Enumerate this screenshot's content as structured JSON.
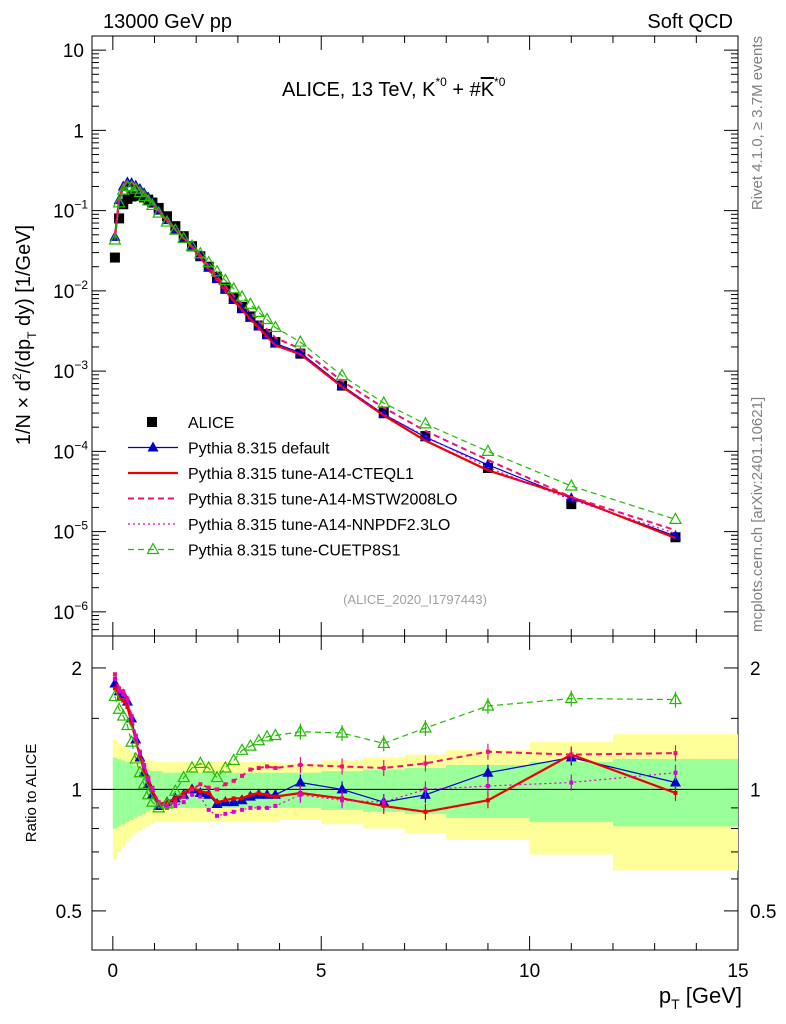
{
  "header": {
    "left": "13000 GeV pp",
    "right": "Soft QCD"
  },
  "side_labels": {
    "rivet": "Rivet 4.1.0, ≥ 3.7M events",
    "mcplots": "mcplots.cern.ch [arXiv:2401.10621]"
  },
  "watermark": "(ALICE_2020_I1797443)",
  "chart_data": [
    {
      "type": "line",
      "panel": "main",
      "title_parts": [
        "ALICE, 13 TeV, K",
        "*0",
        " + #",
        "K",
        "*0"
      ],
      "ylabel_parts": [
        "1/N × d",
        "2",
        "/(dp",
        "T",
        " dy) [1/GeV]"
      ],
      "xlim": [
        -0.5,
        15.0
      ],
      "ylim": [
        5e-07,
        15
      ],
      "yscale": "log",
      "yticks": [
        {
          "v": 1e-06,
          "b": "10",
          "e": "−6"
        },
        {
          "v": 1e-05,
          "b": "10",
          "e": "−5"
        },
        {
          "v": 0.0001,
          "b": "10",
          "e": "−4"
        },
        {
          "v": 0.001,
          "b": "10",
          "e": "−3"
        },
        {
          "v": 0.01,
          "b": "10",
          "e": "−2"
        },
        {
          "v": 0.1,
          "b": "10",
          "e": "−1"
        },
        {
          "v": 1,
          "b": "1",
          "e": ""
        },
        {
          "v": 10,
          "b": "10",
          "e": ""
        }
      ],
      "legend_position": "lower-left",
      "series": [
        {
          "name": "ALICE",
          "style": "data",
          "color": "#000000",
          "x": [
            0.05,
            0.15,
            0.25,
            0.35,
            0.45,
            0.55,
            0.65,
            0.75,
            0.85,
            0.95,
            1.1,
            1.3,
            1.5,
            1.7,
            1.9,
            2.1,
            2.3,
            2.5,
            2.7,
            2.9,
            3.1,
            3.3,
            3.5,
            3.7,
            3.9,
            4.5,
            5.5,
            6.5,
            7.5,
            9.0,
            11.0,
            13.5
          ],
          "values": [
            0.026,
            0.08,
            0.12,
            0.14,
            0.15,
            0.155,
            0.153,
            0.146,
            0.137,
            0.126,
            0.108,
            0.085,
            0.064,
            0.048,
            0.036,
            0.027,
            0.02,
            0.015,
            0.011,
            0.0083,
            0.0063,
            0.0048,
            0.0037,
            0.0029,
            0.0023,
            0.00165,
            0.00066,
            0.00031,
            0.000155,
            6.2e-05,
            2.2e-05,
            8.5e-06
          ]
        },
        {
          "name": "Pythia 8.315 default",
          "style": "solid-triangle",
          "color": "#0000cc",
          "x": [
            0.05,
            0.15,
            0.25,
            0.35,
            0.45,
            0.55,
            0.65,
            0.75,
            0.85,
            0.95,
            1.1,
            1.3,
            1.5,
            1.7,
            1.9,
            2.1,
            2.3,
            2.5,
            2.7,
            2.9,
            3.1,
            3.3,
            3.5,
            3.7,
            3.9,
            4.5,
            5.5,
            6.5,
            7.5,
            9.0,
            11.0,
            13.5
          ],
          "values": [
            0.047,
            0.135,
            0.2,
            0.225,
            0.22,
            0.205,
            0.186,
            0.165,
            0.145,
            0.126,
            0.1,
            0.076,
            0.058,
            0.045,
            0.035,
            0.027,
            0.0195,
            0.014,
            0.0103,
            0.0077,
            0.0059,
            0.0046,
            0.0036,
            0.0028,
            0.0022,
            0.0017,
            0.00066,
            0.00029,
            0.00015,
            6.8e-05,
            2.6e-05,
            8.8e-06
          ]
        },
        {
          "name": "Pythia 8.315 tune-A14-CTEQL1",
          "style": "solid-thick",
          "color": "#ee0000",
          "x": [
            0.05,
            0.15,
            0.25,
            0.35,
            0.45,
            0.55,
            0.65,
            0.75,
            0.85,
            0.95,
            1.1,
            1.3,
            1.5,
            1.7,
            1.9,
            2.1,
            2.3,
            2.5,
            2.7,
            2.9,
            3.1,
            3.3,
            3.5,
            3.7,
            3.9,
            4.5,
            5.5,
            6.5,
            7.5,
            9.0,
            11.0,
            13.5
          ],
          "values": [
            0.046,
            0.134,
            0.199,
            0.224,
            0.219,
            0.204,
            0.185,
            0.164,
            0.144,
            0.125,
            0.099,
            0.075,
            0.058,
            0.045,
            0.035,
            0.026,
            0.019,
            0.0138,
            0.0101,
            0.0076,
            0.0058,
            0.0045,
            0.0035,
            0.0027,
            0.0021,
            0.00162,
            0.00064,
            0.00028,
            0.000136,
            5.8e-05,
            2.7e-05,
            8.3e-06
          ]
        },
        {
          "name": "Pythia 8.315 tune-A14-MSTW2008LO",
          "style": "dashed",
          "color": "#ee1177",
          "x": [
            0.05,
            0.15,
            0.25,
            0.35,
            0.45,
            0.55,
            0.65,
            0.75,
            0.85,
            0.95,
            1.1,
            1.3,
            1.5,
            1.7,
            1.9,
            2.1,
            2.3,
            2.5,
            2.7,
            2.9,
            3.1,
            3.3,
            3.5,
            3.7,
            3.9,
            4.5,
            5.5,
            6.5,
            7.5,
            9.0,
            11.0,
            13.5
          ],
          "values": [
            0.05,
            0.142,
            0.21,
            0.235,
            0.228,
            0.211,
            0.19,
            0.168,
            0.147,
            0.128,
            0.101,
            0.077,
            0.059,
            0.046,
            0.036,
            0.028,
            0.0202,
            0.0151,
            0.0114,
            0.0087,
            0.0068,
            0.0054,
            0.0042,
            0.0033,
            0.0026,
            0.0019,
            0.00075,
            0.00035,
            0.00018,
            7.8e-05,
            2.7e-05,
            1.04e-05
          ]
        },
        {
          "name": "Pythia 8.315 tune-A14-NNPDF2.3LO",
          "style": "dotted",
          "color": "#dd00dd",
          "x": [
            0.05,
            0.15,
            0.25,
            0.35,
            0.45,
            0.55,
            0.65,
            0.75,
            0.85,
            0.95,
            1.1,
            1.3,
            1.5,
            1.7,
            1.9,
            2.1,
            2.3,
            2.5,
            2.7,
            2.9,
            3.1,
            3.3,
            3.5,
            3.7,
            3.9,
            4.5,
            5.5,
            6.5,
            7.5,
            9.0,
            11.0,
            13.5
          ],
          "values": [
            0.049,
            0.14,
            0.207,
            0.232,
            0.226,
            0.209,
            0.188,
            0.166,
            0.145,
            0.126,
            0.099,
            0.076,
            0.058,
            0.045,
            0.035,
            0.026,
            0.0178,
            0.0131,
            0.0096,
            0.0073,
            0.0056,
            0.0043,
            0.0033,
            0.0026,
            0.0021,
            0.0016,
            0.00062,
            0.00029,
            0.000155,
            6.3e-05,
            2.5e-05,
            9.5e-06
          ]
        },
        {
          "name": "Pythia 8.315 tune-CUETP8S1",
          "style": "dashed-open-triangle",
          "color": "#22bb00",
          "x": [
            0.05,
            0.15,
            0.25,
            0.35,
            0.45,
            0.55,
            0.65,
            0.75,
            0.85,
            0.95,
            1.1,
            1.3,
            1.5,
            1.7,
            1.9,
            2.1,
            2.3,
            2.5,
            2.7,
            2.9,
            3.1,
            3.3,
            3.5,
            3.7,
            3.9,
            4.5,
            5.5,
            6.5,
            7.5,
            9.0,
            11.0,
            13.5
          ],
          "values": [
            0.043,
            0.125,
            0.18,
            0.2,
            0.197,
            0.185,
            0.168,
            0.15,
            0.132,
            0.116,
            0.093,
            0.072,
            0.057,
            0.045,
            0.036,
            0.029,
            0.0225,
            0.0173,
            0.0135,
            0.0106,
            0.0084,
            0.0068,
            0.0054,
            0.0044,
            0.0035,
            0.0023,
            0.00088,
            0.0004,
            0.00022,
            0.0001,
            3.7e-05,
            1.42e-05
          ]
        }
      ]
    },
    {
      "type": "line",
      "panel": "ratio",
      "ylabel": "Ratio to ALICE",
      "xlabel_parts": [
        "p",
        "T",
        " [GeV]"
      ],
      "xlim": [
        -0.5,
        15.0
      ],
      "ylim": [
        0.4,
        2.4
      ],
      "yscale": "log",
      "yticks": [
        {
          "v": 0.5,
          "label": "0.5"
        },
        {
          "v": 1,
          "label": "1"
        },
        {
          "v": 2,
          "label": "2"
        }
      ],
      "xticks": [
        {
          "v": 0,
          "label": "0"
        },
        {
          "v": 5,
          "label": "5"
        },
        {
          "v": 10,
          "label": "10"
        },
        {
          "v": 15,
          "label": "15"
        }
      ],
      "bands": {
        "edges": [
          0,
          0.1,
          0.2,
          0.3,
          0.4,
          0.5,
          0.6,
          0.7,
          0.8,
          0.9,
          1.0,
          1.2,
          1.4,
          1.6,
          1.8,
          2.0,
          2.2,
          2.4,
          2.6,
          2.8,
          3.0,
          3.2,
          3.4,
          3.6,
          3.8,
          4.0,
          5.0,
          6.0,
          7.0,
          8.0,
          10.0,
          12.0,
          15.0
        ],
        "inner": [
          0.2,
          0.19,
          0.18,
          0.17,
          0.16,
          0.15,
          0.14,
          0.13,
          0.12,
          0.11,
          0.11,
          0.1,
          0.1,
          0.1,
          0.1,
          0.1,
          0.1,
          0.1,
          0.1,
          0.1,
          0.1,
          0.1,
          0.1,
          0.1,
          0.1,
          0.1,
          0.11,
          0.12,
          0.13,
          0.15,
          0.17,
          0.19,
          0.21
        ],
        "outer": [
          0.33,
          0.3,
          0.28,
          0.26,
          0.24,
          0.22,
          0.21,
          0.2,
          0.19,
          0.18,
          0.17,
          0.17,
          0.17,
          0.17,
          0.17,
          0.17,
          0.17,
          0.17,
          0.17,
          0.17,
          0.17,
          0.17,
          0.17,
          0.17,
          0.17,
          0.16,
          0.18,
          0.2,
          0.22,
          0.25,
          0.31,
          0.37,
          0.43
        ]
      },
      "series": [
        {
          "name": "Pythia 8.315 default",
          "style": "solid-triangle",
          "color": "#0000cc",
          "x": [
            0.05,
            0.15,
            0.25,
            0.35,
            0.45,
            0.55,
            0.65,
            0.75,
            0.85,
            0.95,
            1.1,
            1.3,
            1.5,
            1.7,
            1.9,
            2.1,
            2.3,
            2.5,
            2.7,
            2.9,
            3.1,
            3.3,
            3.5,
            3.7,
            3.9,
            4.5,
            5.5,
            6.5,
            7.5,
            9.0,
            11.0,
            13.5
          ],
          "values": [
            1.83,
            1.75,
            1.72,
            1.65,
            1.5,
            1.33,
            1.2,
            1.1,
            1.03,
            0.97,
            0.91,
            0.93,
            0.95,
            0.97,
            1.0,
            0.98,
            0.97,
            0.92,
            0.93,
            0.93,
            0.94,
            0.96,
            0.97,
            0.97,
            0.97,
            1.04,
            1.0,
            0.93,
            0.97,
            1.1,
            1.2,
            1.04
          ]
        },
        {
          "name": "Pythia 8.315 tune-A14-CTEQL1",
          "style": "solid-thick",
          "color": "#ee0000",
          "x": [
            0.05,
            0.15,
            0.25,
            0.35,
            0.45,
            0.55,
            0.65,
            0.75,
            0.85,
            0.95,
            1.1,
            1.3,
            1.5,
            1.7,
            1.9,
            2.1,
            2.3,
            2.5,
            2.7,
            2.9,
            3.1,
            3.3,
            3.5,
            3.7,
            3.9,
            4.5,
            5.5,
            6.5,
            7.5,
            9.0,
            11.0,
            13.5
          ],
          "values": [
            1.78,
            1.68,
            1.66,
            1.6,
            1.46,
            1.32,
            1.21,
            1.12,
            1.05,
            0.99,
            0.92,
            0.93,
            0.95,
            0.98,
            1.01,
            0.99,
            0.98,
            0.93,
            0.94,
            0.95,
            0.95,
            0.97,
            0.98,
            0.97,
            0.96,
            0.98,
            0.95,
            0.91,
            0.88,
            0.94,
            1.22,
            0.98
          ]
        },
        {
          "name": "Pythia 8.315 tune-A14-MSTW2008LO",
          "style": "dashed",
          "color": "#ee1177",
          "x": [
            0.05,
            0.15,
            0.25,
            0.35,
            0.45,
            0.55,
            0.65,
            0.75,
            0.85,
            0.95,
            1.1,
            1.3,
            1.5,
            1.7,
            1.9,
            2.1,
            2.3,
            2.5,
            2.7,
            2.9,
            3.1,
            3.3,
            3.5,
            3.7,
            3.9,
            4.5,
            5.5,
            6.5,
            7.5,
            9.0,
            11.0,
            13.5
          ],
          "values": [
            1.93,
            1.78,
            1.75,
            1.68,
            1.52,
            1.36,
            1.24,
            1.15,
            1.07,
            1.01,
            0.93,
            0.91,
            0.93,
            0.96,
            1.0,
            1.03,
            1.01,
            1.0,
            1.03,
            1.05,
            1.08,
            1.12,
            1.13,
            1.14,
            1.13,
            1.15,
            1.14,
            1.13,
            1.16,
            1.24,
            1.22,
            1.23
          ]
        },
        {
          "name": "Pythia 8.315 tune-A14-NNPDF2.3LO",
          "style": "dotted",
          "color": "#dd00dd",
          "x": [
            0.05,
            0.15,
            0.25,
            0.35,
            0.45,
            0.55,
            0.65,
            0.75,
            0.85,
            0.95,
            1.1,
            1.3,
            1.5,
            1.7,
            1.9,
            2.1,
            2.3,
            2.5,
            2.7,
            2.9,
            3.1,
            3.3,
            3.5,
            3.7,
            3.9,
            4.5,
            5.5,
            6.5,
            7.5,
            9.0,
            11.0,
            13.5
          ],
          "values": [
            1.88,
            1.75,
            1.72,
            1.66,
            1.51,
            1.35,
            1.23,
            1.14,
            1.06,
            1.0,
            0.92,
            0.9,
            0.91,
            0.93,
            0.97,
            0.96,
            0.89,
            0.86,
            0.87,
            0.88,
            0.89,
            0.9,
            0.9,
            0.9,
            0.91,
            0.97,
            0.94,
            0.93,
            1.0,
            1.02,
            1.04,
            1.1
          ]
        },
        {
          "name": "Pythia 8.315 tune-CUETP8S1",
          "style": "dashed-open-triangle",
          "color": "#22bb00",
          "x": [
            0.05,
            0.15,
            0.25,
            0.35,
            0.45,
            0.55,
            0.65,
            0.75,
            0.85,
            0.95,
            1.1,
            1.3,
            1.5,
            1.7,
            1.9,
            2.1,
            2.3,
            2.5,
            2.7,
            2.9,
            3.1,
            3.3,
            3.5,
            3.7,
            3.9,
            4.5,
            5.5,
            6.5,
            7.5,
            9.0,
            11.0,
            13.5
          ],
          "values": [
            1.7,
            1.58,
            1.52,
            1.44,
            1.31,
            1.19,
            1.1,
            1.03,
            0.97,
            0.93,
            0.9,
            0.92,
            0.99,
            1.07,
            1.13,
            1.16,
            1.13,
            1.07,
            1.13,
            1.18,
            1.25,
            1.28,
            1.32,
            1.35,
            1.36,
            1.39,
            1.38,
            1.3,
            1.42,
            1.61,
            1.68,
            1.67
          ]
        }
      ]
    }
  ]
}
